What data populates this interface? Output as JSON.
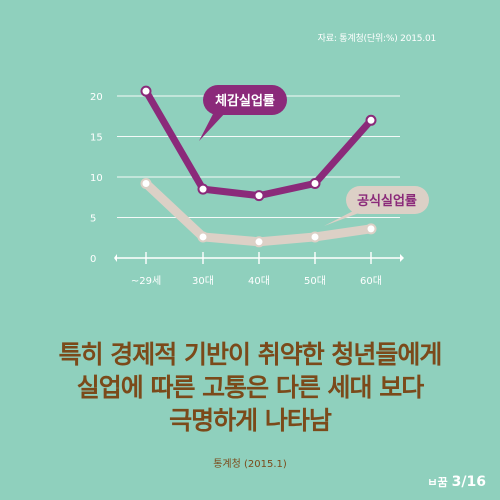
{
  "source_top": "자료: 통계청(단위:%) 2015.01",
  "headline": {
    "lines": [
      "특히 경제적 기반이 취약한 청년들에게",
      "실업에 따른 고통은 다른 세대 보다",
      "극명하게 나타남"
    ]
  },
  "source_bottom": "통계청 (2015.1)",
  "page_indicator": "3/16",
  "logo_text": "ㅂ꿈",
  "colors": {
    "background": "#8fd0bd",
    "series_felt": "#8b2a7a",
    "series_official": "#dcd0c6",
    "headline": "#7b4a1a",
    "grid": "#ffffff"
  },
  "chart_data": {
    "type": "line",
    "categories": [
      "~29세",
      "30대",
      "40대",
      "50대",
      "60대"
    ],
    "y_ticks": [
      "0",
      "5",
      "10",
      "15",
      "20"
    ],
    "ylim": [
      0,
      20
    ],
    "series": [
      {
        "name": "체감실업률",
        "values": [
          20.6,
          8.5,
          7.7,
          9.2,
          17.0
        ]
      },
      {
        "name": "공식실업률",
        "values": [
          9.2,
          2.6,
          2.0,
          2.6,
          3.6
        ]
      }
    ],
    "grid": true,
    "legend": "callouts on lines"
  }
}
